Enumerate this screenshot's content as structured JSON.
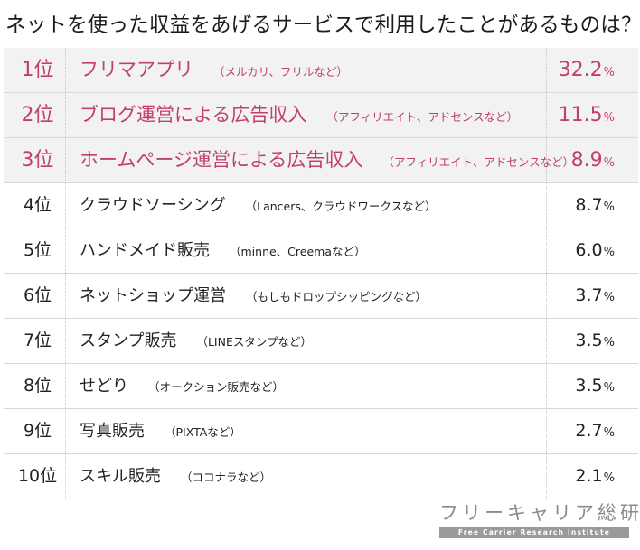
{
  "chart_data": {
    "type": "table",
    "title": "ネットを使った収益をあげるサービスで利用したことがあるものは？",
    "unit": "%",
    "rows": [
      {
        "rank": "1位",
        "name": "フリマアプリ",
        "note": "（メルカリ、フリルなど）",
        "value": "32.2",
        "highlight": true
      },
      {
        "rank": "2位",
        "name": "ブログ運営による広告収入",
        "note": "（アフィリエイト、アドセンスなど）",
        "value": "11.5",
        "highlight": true
      },
      {
        "rank": "3位",
        "name": "ホームページ運営による広告収入",
        "note": "（アフィリエイト、アドセンスなど）",
        "value": "8.9",
        "highlight": true
      },
      {
        "rank": "4位",
        "name": "クラウドソーシング",
        "note": "（Lancers、クラウドワークスなど）",
        "value": "8.7",
        "highlight": false
      },
      {
        "rank": "5位",
        "name": "ハンドメイド販売",
        "note": "（minne、Creemaなど）",
        "value": "6.0",
        "highlight": false
      },
      {
        "rank": "6位",
        "name": "ネットショップ運営",
        "note": "（もしもドロップシッピングなど）",
        "value": "3.7",
        "highlight": false
      },
      {
        "rank": "7位",
        "name": "スタンプ販売",
        "note": "（LINEスタンプなど）",
        "value": "3.5",
        "highlight": false
      },
      {
        "rank": "8位",
        "name": "せどり",
        "note": "（オークション販売など）",
        "value": "3.5",
        "highlight": false
      },
      {
        "rank": "9位",
        "name": "写真販売",
        "note": "（PIXTAなど）",
        "value": "2.7",
        "highlight": false
      },
      {
        "rank": "10位",
        "name": "スキル販売",
        "note": "（ココナラなど）",
        "value": "2.1",
        "highlight": false
      }
    ],
    "highlight_color": "#c1406a",
    "highlight_bg": "#f2f2f2"
  },
  "brand": {
    "name": "フリーキャリア総研",
    "subtitle": "Free Carrier Research Institute"
  }
}
